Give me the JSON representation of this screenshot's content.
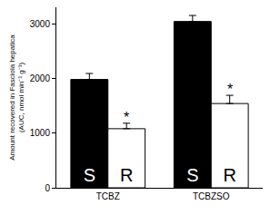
{
  "chart_data": {
    "type": "bar",
    "y_label": "Amount recovered in Fasciola hepatica (AUC, nmol min⁻¹ g⁻¹)",
    "categories": [
      "TCBZ",
      "TCBZSO"
    ],
    "series": [
      {
        "name": "S",
        "color": "#000000",
        "values": [
          1980,
          3040
        ],
        "errors": [
          110,
          110
        ]
      },
      {
        "name": "R",
        "color": "#ffffff",
        "values": [
          1080,
          1540
        ],
        "errors": [
          100,
          150
        ]
      }
    ],
    "ylim": [
      0,
      3300
    ],
    "yticks": [
      0,
      1000,
      2000,
      3000
    ],
    "grid": false,
    "annotations": [
      {
        "text": "*",
        "category": "TCBZ",
        "series": "R"
      },
      {
        "text": "*",
        "category": "TCBZSO",
        "series": "R"
      }
    ]
  }
}
